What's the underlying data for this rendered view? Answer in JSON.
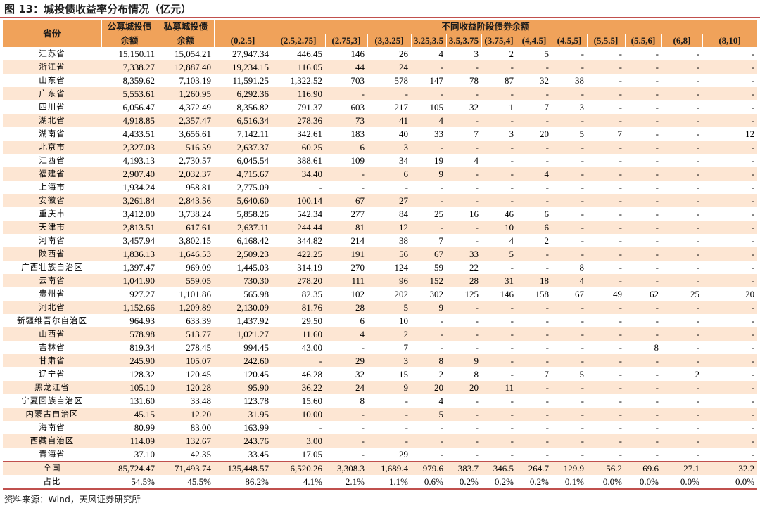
{
  "figure": {
    "title": "图 13：城投债收益率分布情况（亿元）"
  },
  "source": "资料来源：Wind，天风证券研究所",
  "table": {
    "province_header": "省份",
    "public_header_line1": "公募城投债",
    "public_header_line2": "余额",
    "private_header_line1": "私募城投债",
    "private_header_line2": "余额",
    "group_header": "不同收益阶段债券余额",
    "ranges": [
      "(0,2.5]",
      "(2.5,2.75]",
      "(2.75,3]",
      "(3,3.25]",
      "3.25,3.5",
      "3.5,3.75",
      "(3.75,4]",
      "(4,4.5]",
      "(4.5,5]",
      "(5,5.5]",
      "(5.5,6]",
      "(6,8]",
      "(8,10]"
    ],
    "rows": [
      {
        "name": "江苏省",
        "cells": [
          "15,150.11",
          "15,054.21",
          "27,947.34",
          "446.45",
          "146",
          "26",
          "4",
          "3",
          "2",
          "5",
          "-",
          "-",
          "-",
          "-",
          "-"
        ]
      },
      {
        "name": "浙江省",
        "cells": [
          "7,338.27",
          "12,887.40",
          "19,234.15",
          "116.05",
          "44",
          "24",
          "-",
          "-",
          "-",
          "-",
          "-",
          "-",
          "-",
          "-",
          "-"
        ]
      },
      {
        "name": "山东省",
        "cells": [
          "8,359.62",
          "7,103.19",
          "11,591.25",
          "1,322.52",
          "703",
          "578",
          "147",
          "78",
          "87",
          "32",
          "38",
          "-",
          "-",
          "-",
          "-"
        ]
      },
      {
        "name": "广东省",
        "cells": [
          "5,553.61",
          "1,260.95",
          "6,292.36",
          "116.90",
          "-",
          "-",
          "-",
          "-",
          "-",
          "-",
          "-",
          "-",
          "-",
          "-",
          "-"
        ]
      },
      {
        "name": "四川省",
        "cells": [
          "6,056.47",
          "4,372.49",
          "8,356.82",
          "791.37",
          "603",
          "217",
          "105",
          "32",
          "1",
          "7",
          "3",
          "-",
          "-",
          "-",
          "-"
        ]
      },
      {
        "name": "湖北省",
        "cells": [
          "4,918.85",
          "2,357.47",
          "6,516.34",
          "278.36",
          "73",
          "41",
          "4",
          "-",
          "-",
          "-",
          "-",
          "-",
          "-",
          "-",
          "-"
        ]
      },
      {
        "name": "湖南省",
        "cells": [
          "4,433.51",
          "3,656.61",
          "7,142.11",
          "342.61",
          "183",
          "40",
          "33",
          "7",
          "3",
          "20",
          "5",
          "7",
          "-",
          "-",
          "12"
        ]
      },
      {
        "name": "北京市",
        "cells": [
          "2,327.03",
          "516.59",
          "2,637.37",
          "60.25",
          "6",
          "3",
          "-",
          "-",
          "-",
          "-",
          "-",
          "-",
          "-",
          "-",
          "-"
        ]
      },
      {
        "name": "江西省",
        "cells": [
          "4,193.13",
          "2,730.57",
          "6,045.54",
          "388.61",
          "109",
          "34",
          "19",
          "4",
          "-",
          "-",
          "-",
          "-",
          "-",
          "-",
          "-"
        ]
      },
      {
        "name": "福建省",
        "cells": [
          "2,907.40",
          "2,032.37",
          "4,715.67",
          "34.40",
          "-",
          "6",
          "9",
          "-",
          "-",
          "4",
          "-",
          "-",
          "-",
          "-",
          "-"
        ]
      },
      {
        "name": "上海市",
        "cells": [
          "1,934.24",
          "958.81",
          "2,775.09",
          "-",
          "-",
          "-",
          "-",
          "-",
          "-",
          "-",
          "-",
          "-",
          "-",
          "-",
          "-"
        ]
      },
      {
        "name": "安徽省",
        "cells": [
          "3,261.84",
          "2,843.56",
          "5,640.60",
          "100.14",
          "67",
          "27",
          "-",
          "-",
          "-",
          "-",
          "-",
          "-",
          "-",
          "-",
          "-"
        ]
      },
      {
        "name": "重庆市",
        "cells": [
          "3,412.00",
          "3,738.24",
          "5,858.26",
          "542.34",
          "277",
          "84",
          "25",
          "16",
          "46",
          "6",
          "-",
          "-",
          "-",
          "-",
          "-"
        ]
      },
      {
        "name": "天津市",
        "cells": [
          "2,813.51",
          "617.61",
          "2,637.11",
          "244.44",
          "81",
          "12",
          "-",
          "-",
          "10",
          "6",
          "-",
          "-",
          "-",
          "-",
          "-"
        ]
      },
      {
        "name": "河南省",
        "cells": [
          "3,457.94",
          "3,802.15",
          "6,168.42",
          "344.82",
          "214",
          "38",
          "7",
          "-",
          "4",
          "2",
          "-",
          "-",
          "-",
          "-",
          "-"
        ]
      },
      {
        "name": "陕西省",
        "cells": [
          "1,836.13",
          "1,646.53",
          "2,509.23",
          "422.25",
          "191",
          "56",
          "67",
          "33",
          "5",
          "-",
          "-",
          "-",
          "-",
          "-",
          "-"
        ]
      },
      {
        "name": "广西壮族自治区",
        "cells": [
          "1,397.47",
          "969.09",
          "1,445.03",
          "314.19",
          "270",
          "124",
          "59",
          "22",
          "-",
          "-",
          "8",
          "-",
          "-",
          "-",
          "-"
        ]
      },
      {
        "name": "云南省",
        "cells": [
          "1,041.90",
          "559.05",
          "730.30",
          "278.20",
          "111",
          "96",
          "152",
          "28",
          "31",
          "18",
          "4",
          "-",
          "-",
          "-",
          "-"
        ]
      },
      {
        "name": "贵州省",
        "cells": [
          "927.27",
          "1,101.86",
          "565.98",
          "82.35",
          "102",
          "202",
          "302",
          "125",
          "146",
          "158",
          "67",
          "49",
          "62",
          "25",
          "20"
        ]
      },
      {
        "name": "河北省",
        "cells": [
          "1,152.66",
          "1,209.89",
          "2,130.09",
          "81.76",
          "28",
          "5",
          "9",
          "-",
          "-",
          "-",
          "-",
          "-",
          "-",
          "-",
          "-"
        ]
      },
      {
        "name": "新疆维吾尔自治区",
        "cells": [
          "964.93",
          "633.39",
          "1,437.92",
          "29.50",
          "6",
          "10",
          "-",
          "-",
          "-",
          "-",
          "-",
          "-",
          "-",
          "-",
          "-"
        ]
      },
      {
        "name": "山西省",
        "cells": [
          "578.98",
          "513.77",
          "1,021.27",
          "11.60",
          "4",
          "2",
          "-",
          "-",
          "-",
          "-",
          "-",
          "-",
          "-",
          "-",
          "-"
        ]
      },
      {
        "name": "吉林省",
        "cells": [
          "819.34",
          "278.45",
          "994.45",
          "43.00",
          "-",
          "7",
          "-",
          "-",
          "-",
          "-",
          "-",
          "-",
          "8",
          "-",
          "-"
        ]
      },
      {
        "name": "甘肃省",
        "cells": [
          "245.90",
          "105.07",
          "242.60",
          "-",
          "29",
          "3",
          "8",
          "9",
          "-",
          "-",
          "-",
          "-",
          "-",
          "-",
          "-"
        ]
      },
      {
        "name": "辽宁省",
        "cells": [
          "128.32",
          "120.45",
          "120.45",
          "46.28",
          "32",
          "15",
          "2",
          "8",
          "-",
          "7",
          "5",
          "-",
          "-",
          "2",
          "-"
        ]
      },
      {
        "name": "黑龙江省",
        "cells": [
          "105.10",
          "120.28",
          "95.90",
          "36.22",
          "24",
          "9",
          "20",
          "20",
          "11",
          "-",
          "-",
          "-",
          "-",
          "-",
          "-"
        ]
      },
      {
        "name": "宁夏回族自治区",
        "cells": [
          "131.60",
          "33.48",
          "123.78",
          "15.60",
          "8",
          "-",
          "4",
          "-",
          "-",
          "-",
          "-",
          "-",
          "-",
          "-",
          "-"
        ]
      },
      {
        "name": "内蒙古自治区",
        "cells": [
          "45.15",
          "12.20",
          "31.95",
          "10.00",
          "-",
          "-",
          "5",
          "-",
          "-",
          "-",
          "-",
          "-",
          "-",
          "-",
          "-"
        ]
      },
      {
        "name": "海南省",
        "cells": [
          "80.99",
          "83.00",
          "163.99",
          "-",
          "-",
          "-",
          "-",
          "-",
          "-",
          "-",
          "-",
          "-",
          "-",
          "-",
          "-"
        ]
      },
      {
        "name": "西藏自治区",
        "cells": [
          "114.09",
          "132.67",
          "243.76",
          "3.00",
          "-",
          "-",
          "-",
          "-",
          "-",
          "-",
          "-",
          "-",
          "-",
          "-",
          "-"
        ]
      },
      {
        "name": "青海省",
        "cells": [
          "37.10",
          "42.35",
          "33.45",
          "17.05",
          "-",
          "29",
          "-",
          "-",
          "-",
          "-",
          "-",
          "-",
          "-",
          "-",
          "-"
        ]
      }
    ],
    "total": {
      "name": "全国",
      "cells": [
        "85,724.47",
        "71,493.74",
        "135,448.57",
        "6,520.26",
        "3,308.3",
        "1,689.4",
        "979.6",
        "383.7",
        "346.5",
        "264.7",
        "129.9",
        "56.2",
        "69.6",
        "27.1",
        "32.2"
      ]
    },
    "share": {
      "name": "占比",
      "cells": [
        "54.5%",
        "45.5%",
        "86.2%",
        "4.1%",
        "2.1%",
        "1.1%",
        "0.6%",
        "0.2%",
        "0.2%",
        "0.2%",
        "0.1%",
        "0.0%",
        "0.0%",
        "0.0%",
        "0.0%"
      ]
    }
  }
}
